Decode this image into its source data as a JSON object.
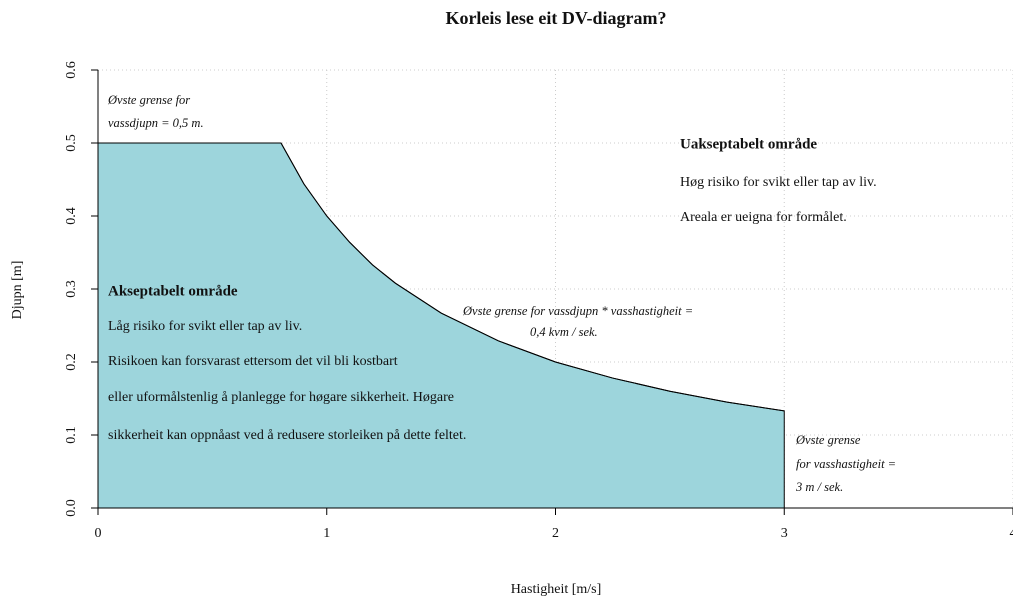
{
  "chart_data": {
    "type": "area",
    "title": "Korleis lese eit DV-diagram?",
    "xlabel": "Hastigheit [m/s]",
    "ylabel": "Djupn [m]",
    "x": [
      0,
      0.8,
      0.9,
      1,
      1.1,
      1.2,
      1.3,
      1.5,
      1.75,
      2,
      2.25,
      2.5,
      2.75,
      3
    ],
    "values": [
      0.5,
      0.5,
      0.444,
      0.4,
      0.364,
      0.333,
      0.308,
      0.267,
      0.229,
      0.2,
      0.178,
      0.16,
      0.145,
      0.133
    ],
    "color": "#9dd5dc",
    "xlim": [
      0,
      4
    ],
    "ylim": [
      0,
      0.6
    ],
    "xticks": [
      0,
      1,
      2,
      3,
      4
    ],
    "yticks": [
      {
        "value": 0,
        "label": "0.0"
      },
      0.1,
      0.2,
      0.3,
      0.4,
      0.5,
      0.6
    ],
    "grid": true,
    "annotations": [
      {
        "lines": [
          "Øvste grense for",
          "vassdjupn = 0,5 m."
        ]
      },
      {
        "lines": [
          "Uakseptabelt område",
          "Høg risiko for svikt eller tap av liv.",
          "Areala er ueigna for formålet."
        ]
      },
      {
        "lines": [
          "Akseptabelt område",
          "Låg risiko for svikt eller tap av liv.",
          "Risikoen kan forsvarast ettersom det vil bli kostbart",
          "eller uformålstenlig å planlegge for høgare sikkerheit. Høgare",
          "sikkerheit kan oppnåast ved å redusere storleiken på dette feltet."
        ]
      },
      {
        "lines": [
          "Øvste grense for vassdjupn * vasshastigheit =",
          "0,4 kvm / sek."
        ]
      },
      {
        "lines": [
          "Øvste grense",
          "for vasshastigheit =",
          "3 m / sek."
        ]
      }
    ]
  }
}
